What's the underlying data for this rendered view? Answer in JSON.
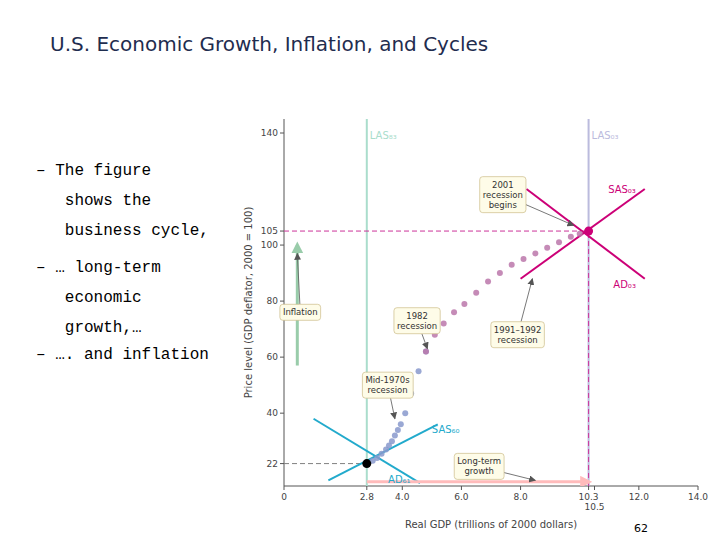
{
  "chart_data": {
    "type": "scatter",
    "title": "U.S. Economic Growth, Inflation, and Cycles",
    "xlabel": "Real GDP (trillions of 2000 dollars)",
    "ylabel": "Price level (GDP deflator, 2000 = 100)",
    "xlim": [
      0,
      14
    ],
    "ylim": [
      14,
      145
    ],
    "xticks": [
      0,
      2.8,
      {
        "value": 4,
        "label": "4.0"
      },
      {
        "value": 6,
        "label": "6.0"
      },
      {
        "value": 8,
        "label": "8.0"
      },
      10.3,
      10.5,
      {
        "value": 12,
        "label": "12.0"
      },
      {
        "value": 14,
        "label": "14.0"
      }
    ],
    "yticks": [
      22,
      40,
      60,
      80,
      100,
      105,
      140
    ],
    "grid": false,
    "series": [
      {
        "type": "line",
        "color": "#AADDCC",
        "line_style": "solid",
        "x": [
          2.8,
          2.8
        ],
        "values": [
          14,
          145
        ]
      },
      {
        "type": "line",
        "color": "#BBBBDD",
        "line_style": "solid",
        "x": [
          10.3,
          10.3
        ],
        "values": [
          14,
          145
        ]
      },
      {
        "type": "line",
        "color": "gray",
        "line_style": "dashed",
        "x": [
          0,
          2.8
        ],
        "values": [
          22,
          22
        ]
      },
      {
        "type": "line",
        "color": "#CC3399",
        "line_style": "dashed",
        "x": [
          0,
          10.3
        ],
        "values": [
          105,
          105
        ]
      },
      {
        "type": "line",
        "color": "#CC3399",
        "line_style": "dashed",
        "x": [
          10.3,
          10.3
        ],
        "values": [
          14,
          105
        ]
      },
      {
        "type": "line",
        "color": "#22AACC",
        "line_style": "solid",
        "x": [
          1.5,
          5.2
        ],
        "values": [
          16,
          36
        ]
      },
      {
        "type": "line",
        "color": "#22AACC",
        "line_style": "solid",
        "x": [
          1.0,
          4.6
        ],
        "values": [
          38,
          15
        ]
      },
      {
        "type": "line",
        "color": "#CC0077",
        "line_style": "solid",
        "x": [
          8.0,
          12.2
        ],
        "values": [
          88,
          120
        ]
      },
      {
        "type": "line",
        "color": "#CC0077",
        "line_style": "solid",
        "x": [
          8.2,
          12.2
        ],
        "values": [
          120,
          88
        ]
      },
      {
        "type": "scatter",
        "color": "#8899CC",
        "marker": "circle",
        "x": [
          2.8,
          3.0,
          3.15,
          3.3,
          3.45,
          3.55,
          3.65,
          3.75,
          3.85,
          3.95,
          4.1,
          4.3,
          4.55,
          4.8
        ],
        "values": [
          22,
          23,
          24,
          25.5,
          27,
          28.5,
          30,
          32,
          34,
          36,
          40,
          47,
          55,
          62
        ]
      },
      {
        "type": "scatter",
        "color": "#BB77AA",
        "marker": "circle",
        "x": [
          4.8,
          5.1,
          5.4,
          5.75,
          6.1,
          6.5,
          6.9,
          7.3,
          7.7,
          8.1,
          8.5,
          8.9,
          9.3,
          9.7,
          10.0,
          10.3
        ],
        "values": [
          62,
          68,
          72,
          76,
          79,
          83,
          87,
          90,
          93,
          95,
          97,
          99,
          101,
          103,
          104,
          105
        ]
      },
      {
        "type": "scatter",
        "color": "black",
        "marker": "circle",
        "x": [
          2.8
        ],
        "values": [
          22
        ]
      },
      {
        "type": "scatter",
        "color": "#CC0077",
        "marker": "circle",
        "x": [
          10.3
        ],
        "values": [
          105
        ]
      },
      {
        "type": "arrow",
        "color": "#99CCAA",
        "x": [
          0.45,
          0.45
        ],
        "values": [
          57,
          100
        ]
      },
      {
        "type": "arrow",
        "color": "#FFBBBB",
        "x": [
          2.8,
          10.3
        ],
        "values": [
          15.5,
          15.5
        ]
      }
    ],
    "annotations": [
      {
        "text": "SAS₆₀",
        "x": 5.0,
        "y": 32,
        "color": "#22AACC"
      },
      {
        "text": "AD₆₁",
        "x": 3.9,
        "y": 14,
        "color": "#22AACC"
      },
      {
        "text": "SAS₀₃",
        "x": 11.9,
        "y": 120,
        "color": "#CC0077"
      },
      {
        "text": "AD₀₃",
        "x": 11.9,
        "y": 86,
        "color": "#CC0077"
      },
      {
        "text": "LAS₈₃",
        "x": 2.8,
        "y": 141,
        "color": "#AADDCC"
      },
      {
        "text": "LAS₀₃",
        "x": 10.3,
        "y": 141,
        "color": "#BBBBDD"
      },
      {
        "text": "Inflation",
        "x": 0.55,
        "y": 76,
        "point": [
          0.45,
          97
        ]
      },
      {
        "text": "Mid-1970s\nrecession",
        "x": 3.5,
        "y": 50,
        "point": [
          3.75,
          38
        ]
      },
      {
        "text": "1982\nrecession",
        "x": 4.5,
        "y": 73,
        "point": [
          4.85,
          63
        ]
      },
      {
        "text": "1991–1992\nrecession",
        "x": 7.9,
        "y": 68,
        "point": [
          8.4,
          88
        ]
      },
      {
        "text": "2001\nrecession\nbegins",
        "x": 7.4,
        "y": 118,
        "point": [
          9.8,
          107
        ]
      },
      {
        "text": "Long-term\ngrowth",
        "x": 6.6,
        "y": 21,
        "point": [
          8.5,
          16
        ]
      }
    ]
  },
  "bullets": [
    [
      "– The figure",
      "   shows the",
      "   business cycle,"
    ],
    [
      "– … long-term",
      "   economic",
      "   growth,…"
    ],
    [
      "– …. and inflation"
    ]
  ],
  "page_number": "62"
}
